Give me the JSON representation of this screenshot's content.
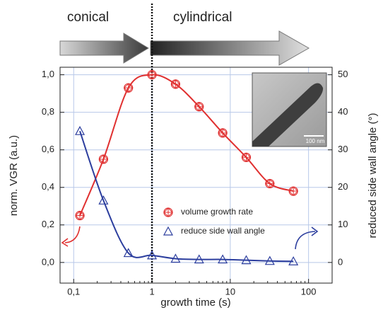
{
  "chart_data": {
    "type": "scatter",
    "annotations": [
      "conical",
      "cylindrical",
      "100 nm"
    ],
    "xlabel": "growth time (s)",
    "ylabel": "norm. VGR (a.u.)",
    "y2label": "reduced side wall angle (°)",
    "xlog": true,
    "grid": true,
    "divider_x": 1,
    "xlim": [
      0.067,
      200
    ],
    "xticks": [
      {
        "value": 0.1,
        "label": "0,1"
      },
      1,
      10,
      100
    ],
    "ylim": [
      -0.11,
      1.04
    ],
    "yticks": [
      {
        "value": 0,
        "label": "0,0"
      },
      {
        "value": 0.2,
        "label": "0,2"
      },
      {
        "value": 0.4,
        "label": "0,4"
      },
      {
        "value": 0.6,
        "label": "0,6"
      },
      {
        "value": 0.8,
        "label": "0,8"
      },
      {
        "value": 1.0,
        "label": "1,0"
      }
    ],
    "y2lim": [
      -5.5,
      52
    ],
    "y2ticks": [
      0,
      10,
      20,
      30,
      40,
      50
    ],
    "x": [
      0.12,
      0.24,
      0.5,
      1,
      2,
      4,
      8,
      16,
      32,
      64
    ],
    "series": [
      {
        "name": "volume growth rate",
        "color": "#e03030",
        "marker": "circle-cross",
        "values": [
          0.25,
          0.55,
          0.93,
          1.0,
          0.95,
          0.83,
          0.69,
          0.56,
          0.42,
          0.38
        ]
      },
      {
        "name": "reduce side wall angle",
        "color": "#2c3e9e",
        "marker": "triangle",
        "axis": "y2",
        "values": [
          35,
          16.5,
          2.5,
          1.9,
          1.0,
          0.8,
          0.8,
          0.6,
          0.4,
          0.3
        ]
      }
    ]
  }
}
